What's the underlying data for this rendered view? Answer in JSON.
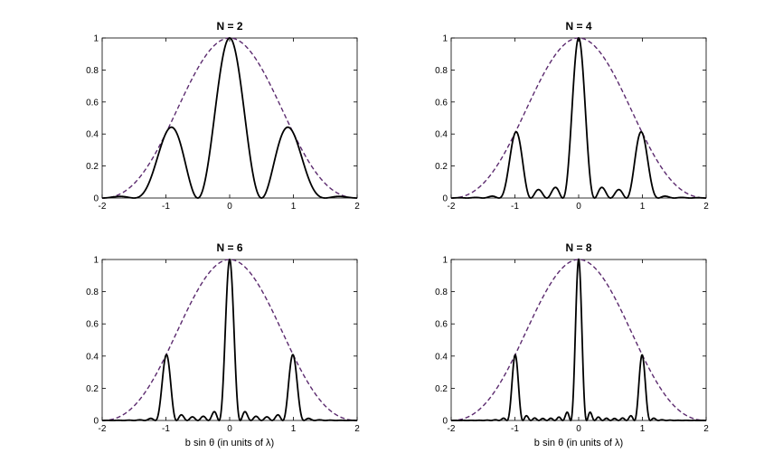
{
  "chart_data": [
    {
      "type": "line",
      "title": "N = 2",
      "xlabel": "",
      "ylabel": "",
      "N": 2,
      "xlim": [
        -2,
        2
      ],
      "ylim": [
        0,
        1
      ],
      "x_ticks": [
        -2,
        -1,
        0,
        1,
        2
      ],
      "y_ticks": [
        0,
        0.2,
        0.4,
        0.6,
        0.8,
        1
      ],
      "series": [
        {
          "style": "solid",
          "color": "#000000"
        },
        {
          "style": "dashed",
          "color": "#5b2a6e"
        }
      ]
    },
    {
      "type": "line",
      "title": "N = 4",
      "xlabel": "",
      "ylabel": "",
      "N": 4,
      "xlim": [
        -2,
        2
      ],
      "ylim": [
        0,
        1
      ],
      "x_ticks": [
        -2,
        -1,
        0,
        1,
        2
      ],
      "y_ticks": [
        0,
        0.2,
        0.4,
        0.6,
        0.8,
        1
      ],
      "series": [
        {
          "style": "solid",
          "color": "#000000"
        },
        {
          "style": "dashed",
          "color": "#5b2a6e"
        }
      ]
    },
    {
      "type": "line",
      "title": "N = 6",
      "xlabel": "b sin θ (in units of λ)",
      "ylabel": "",
      "N": 6,
      "xlim": [
        -2,
        2
      ],
      "ylim": [
        0,
        1
      ],
      "x_ticks": [
        -2,
        -1,
        0,
        1,
        2
      ],
      "y_ticks": [
        0,
        0.2,
        0.4,
        0.6,
        0.8,
        1
      ],
      "series": [
        {
          "style": "solid",
          "color": "#000000"
        },
        {
          "style": "dashed",
          "color": "#5b2a6e"
        }
      ]
    },
    {
      "type": "line",
      "title": "N = 8",
      "xlabel": "b sin θ (in units of λ)",
      "ylabel": "",
      "N": 8,
      "xlim": [
        -2,
        2
      ],
      "ylim": [
        0,
        1
      ],
      "x_ticks": [
        -2,
        -1,
        0,
        1,
        2
      ],
      "y_ticks": [
        0,
        0.2,
        0.4,
        0.6,
        0.8,
        1
      ],
      "series": [
        {
          "style": "solid",
          "color": "#000000"
        },
        {
          "style": "dashed",
          "color": "#5b2a6e"
        }
      ]
    }
  ]
}
